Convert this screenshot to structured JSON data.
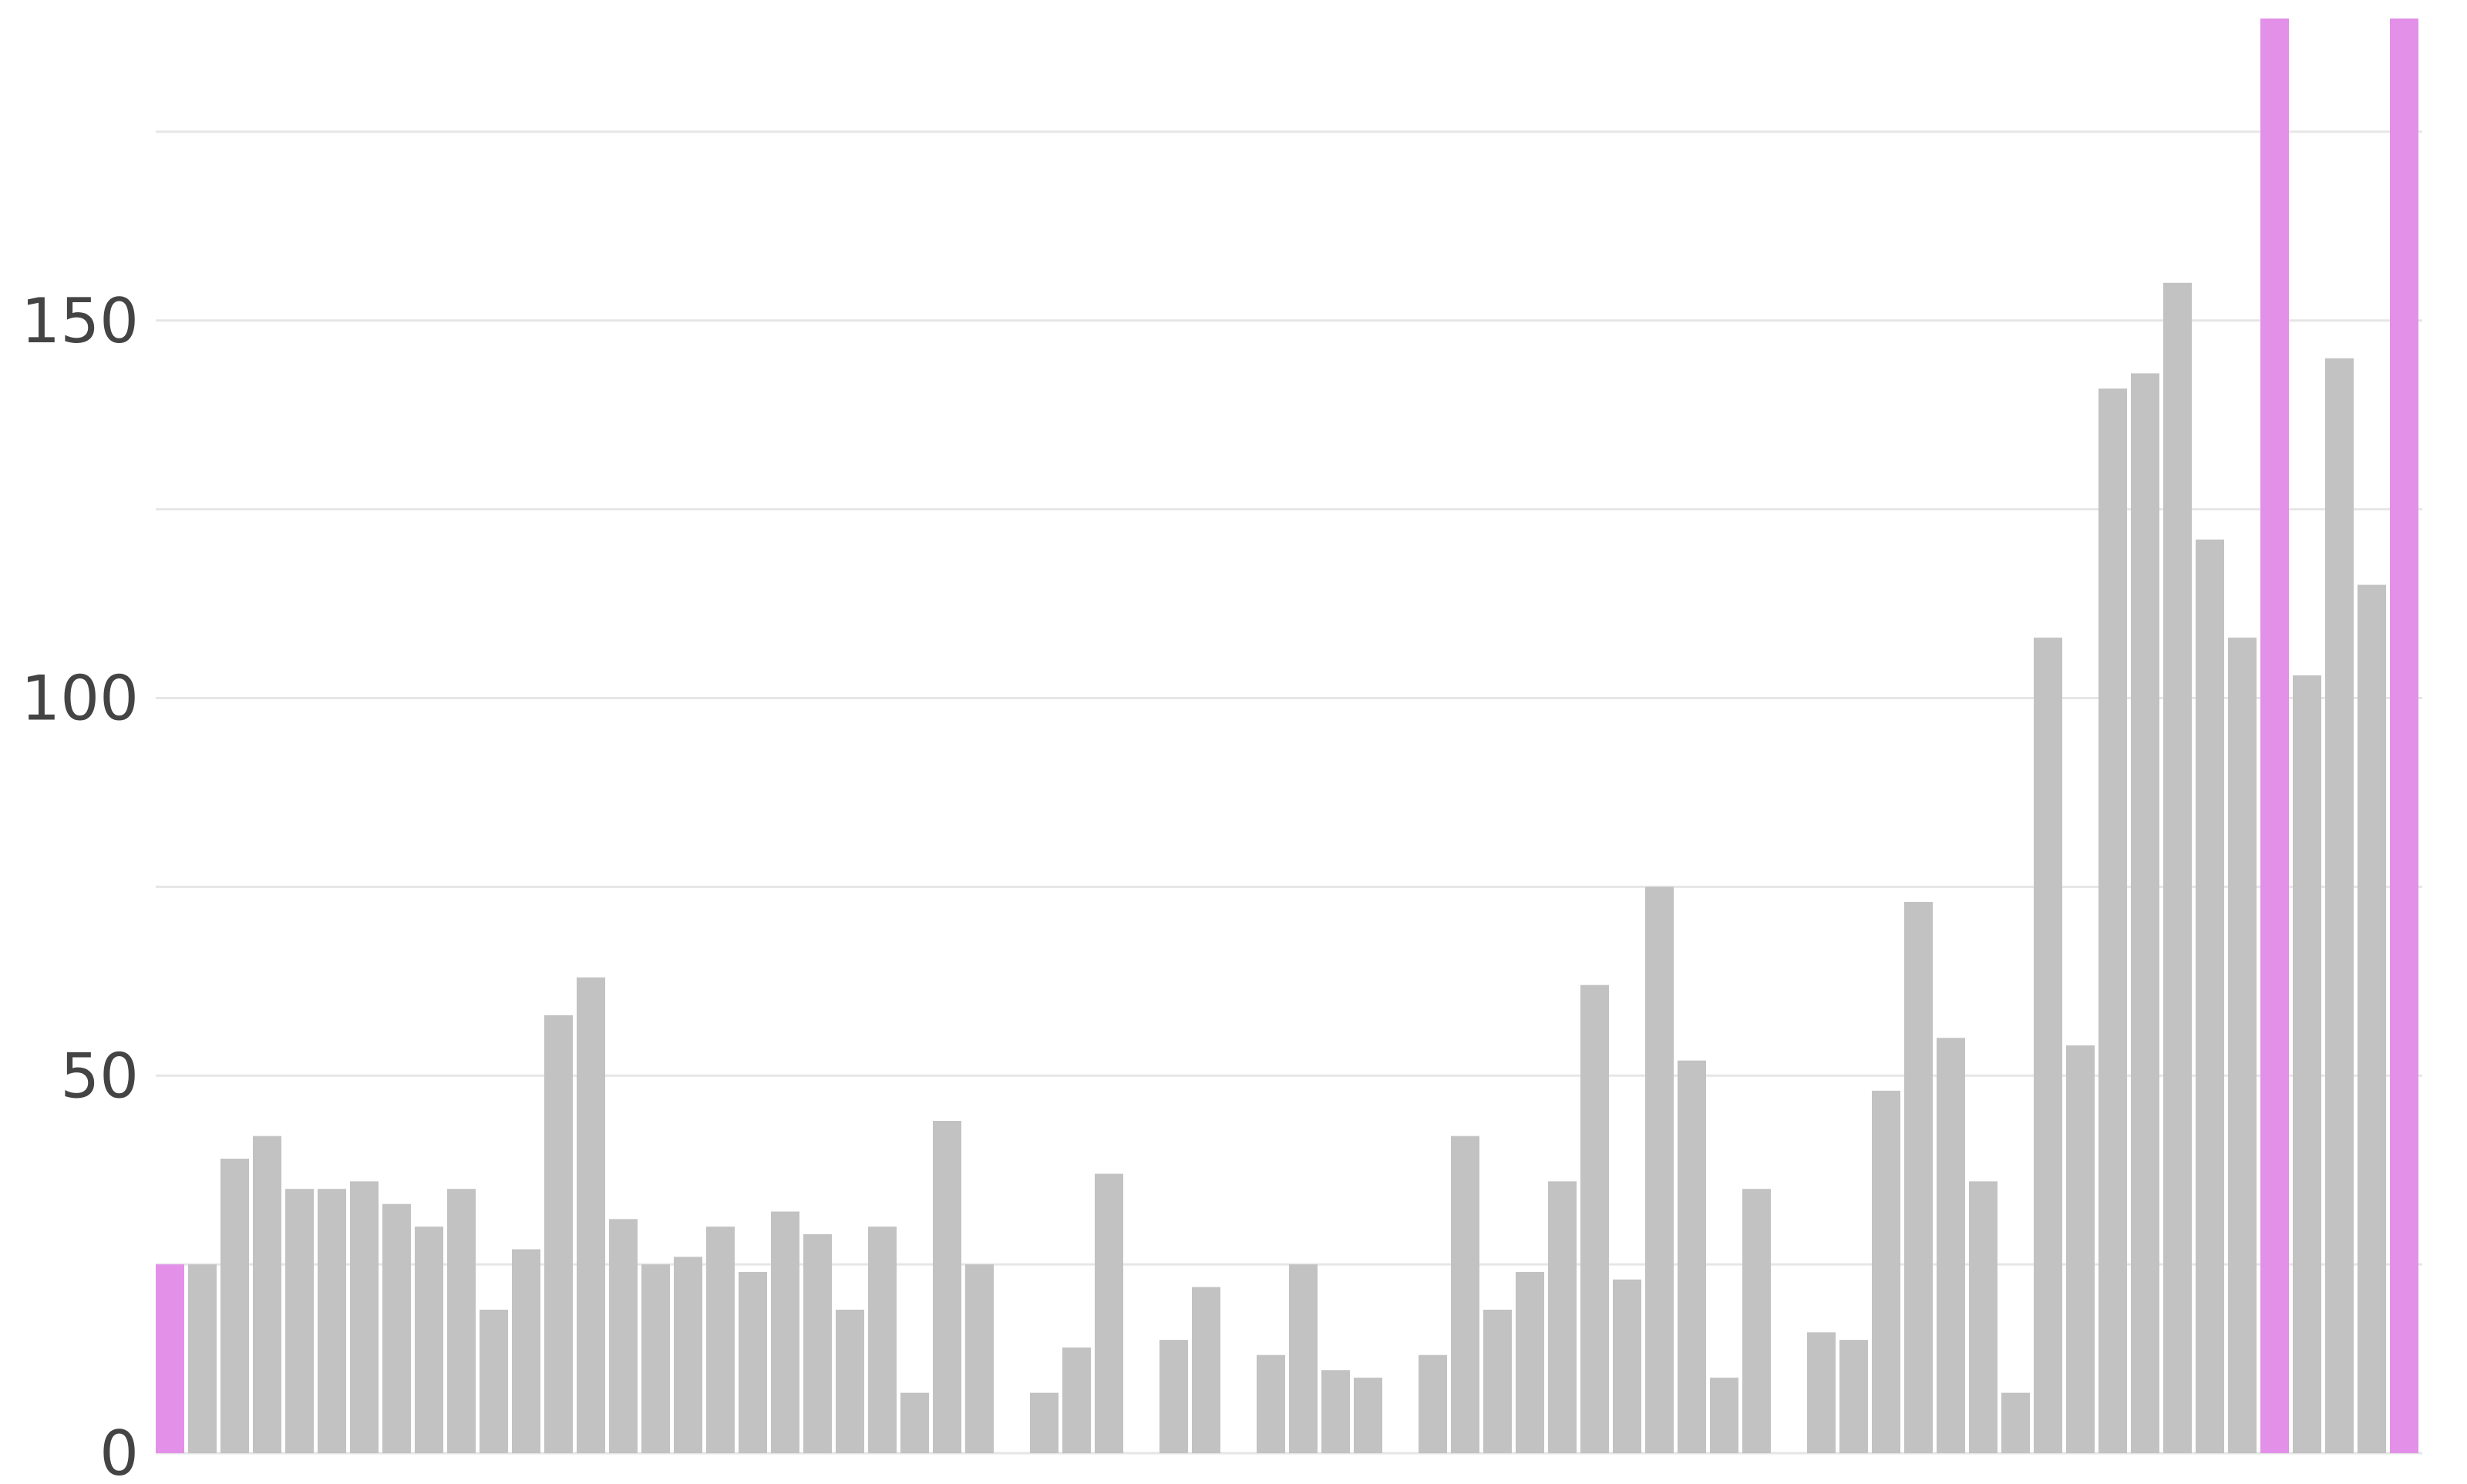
{
  "chart_data": {
    "type": "bar",
    "title": "",
    "xlabel": "",
    "ylabel": "",
    "ylim": [
      0,
      190
    ],
    "y_ticks_labeled": [
      0,
      50,
      100,
      150
    ],
    "y_gridlines": [
      25,
      50,
      75,
      100,
      125,
      150,
      175
    ],
    "grid": true,
    "legend": "none",
    "colors": {
      "default_bar": "#c2c2c2",
      "highlight_bar": "#e290e8",
      "gridline": "#e6e6e6",
      "tick_label": "#444444"
    },
    "values": [
      25,
      25,
      39,
      42,
      35,
      35,
      36,
      33,
      30,
      35,
      19,
      27,
      58,
      63,
      31,
      25,
      26,
      30,
      24,
      32,
      29,
      19,
      30,
      8,
      44,
      25,
      0,
      8,
      14,
      37,
      0,
      15,
      22,
      0,
      13,
      25,
      11,
      10,
      0,
      13,
      42,
      19,
      24,
      36,
      62,
      23,
      75,
      52,
      10,
      35,
      0,
      16,
      15,
      48,
      73,
      55,
      36,
      8,
      108,
      54,
      141,
      143,
      155,
      121,
      108,
      190,
      103,
      145,
      115,
      190
    ],
    "highlighted_indices": [
      0,
      65,
      69
    ]
  }
}
